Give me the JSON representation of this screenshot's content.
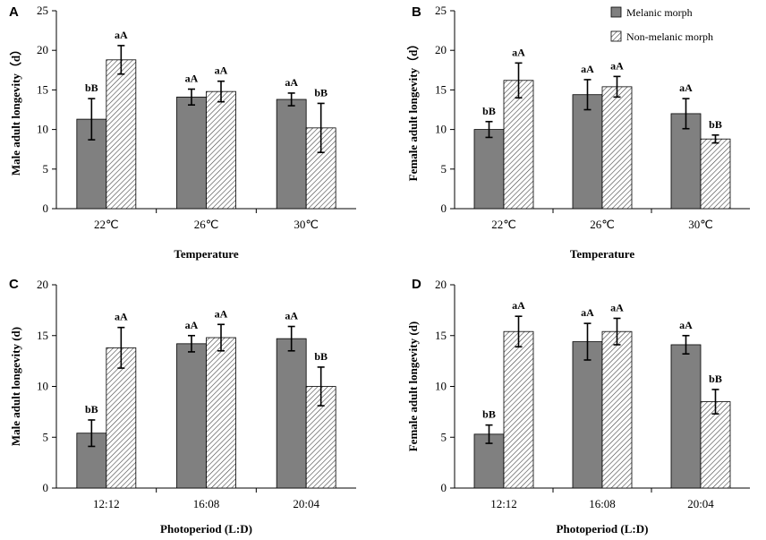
{
  "legend": {
    "melanic": "Melanic morph",
    "non_melanic": "Non-melanic morph"
  },
  "colors": {
    "melanic_fill": "#808080",
    "hatch_line": "#444444",
    "axis": "#000000"
  },
  "chart_data": [
    {
      "panel": "A",
      "type": "bar",
      "title": "",
      "xlabel": "Temperature",
      "ylabel": "Male adult longevity（d）",
      "ylim": [
        0,
        25
      ],
      "yticks": [
        0,
        5,
        10,
        15,
        20,
        25
      ],
      "categories": [
        "22℃",
        "26℃",
        "30℃"
      ],
      "series": [
        {
          "name": "Melanic morph",
          "values": [
            11.3,
            14.1,
            13.8
          ],
          "errors": [
            2.6,
            1.0,
            0.8
          ],
          "labels": [
            "bB",
            "aA",
            "aA"
          ]
        },
        {
          "name": "Non-melanic morph",
          "values": [
            18.8,
            14.8,
            10.2
          ],
          "errors": [
            1.8,
            1.3,
            3.1
          ],
          "labels": [
            "aA",
            "aA",
            "bB"
          ]
        }
      ]
    },
    {
      "panel": "B",
      "type": "bar",
      "title": "",
      "xlabel": "Temperature",
      "ylabel": "Female adult longevity（d）",
      "ylim": [
        0,
        25
      ],
      "yticks": [
        0,
        5,
        10,
        15,
        20,
        25
      ],
      "categories": [
        "22℃",
        "26℃",
        "30℃"
      ],
      "series": [
        {
          "name": "Melanic morph",
          "values": [
            10.0,
            14.4,
            12.0
          ],
          "errors": [
            1.0,
            1.9,
            1.9
          ],
          "labels": [
            "bB",
            "aA",
            "aA"
          ]
        },
        {
          "name": "Non-melanic morph",
          "values": [
            16.2,
            15.4,
            8.8
          ],
          "errors": [
            2.2,
            1.3,
            0.5
          ],
          "labels": [
            "aA",
            "aA",
            "bB"
          ]
        }
      ]
    },
    {
      "panel": "C",
      "type": "bar",
      "title": "",
      "xlabel": "Photoperiod (L:D)",
      "ylabel": "Male adult longevity (d)",
      "ylim": [
        0,
        20
      ],
      "yticks": [
        0,
        5,
        10,
        15,
        20
      ],
      "categories": [
        "12:12",
        "16:08",
        "20:04"
      ],
      "series": [
        {
          "name": "Melanic morph",
          "values": [
            5.4,
            14.2,
            14.7
          ],
          "errors": [
            1.3,
            0.8,
            1.2
          ],
          "labels": [
            "bB",
            "aA",
            "aA"
          ]
        },
        {
          "name": "Non-melanic morph",
          "values": [
            13.8,
            14.8,
            10.0
          ],
          "errors": [
            2.0,
            1.3,
            1.9
          ],
          "labels": [
            "aA",
            "aA",
            "bB"
          ]
        }
      ]
    },
    {
      "panel": "D",
      "type": "bar",
      "title": "",
      "xlabel": "Photoperiod (L:D)",
      "ylabel": "Female adult longevity (d)",
      "ylim": [
        0,
        20
      ],
      "yticks": [
        0,
        5,
        10,
        15,
        20
      ],
      "categories": [
        "12:12",
        "16:08",
        "20:04"
      ],
      "series": [
        {
          "name": "Melanic morph",
          "values": [
            5.3,
            14.4,
            14.1
          ],
          "errors": [
            0.9,
            1.8,
            0.9
          ],
          "labels": [
            "bB",
            "aA",
            "aA"
          ]
        },
        {
          "name": "Non-melanic morph",
          "values": [
            15.4,
            15.4,
            8.5
          ],
          "errors": [
            1.5,
            1.3,
            1.2
          ],
          "labels": [
            "aA",
            "aA",
            "bB"
          ]
        }
      ]
    }
  ]
}
